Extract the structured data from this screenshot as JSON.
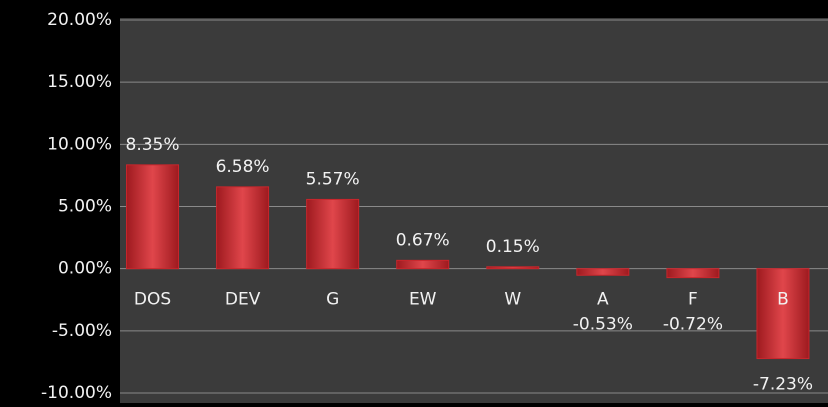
{
  "chart_data": {
    "type": "bar",
    "categories": [
      "DOS",
      "DEV",
      "G",
      "EW",
      "W",
      "A",
      "F",
      "B"
    ],
    "values": [
      8.35,
      6.58,
      5.57,
      0.67,
      0.15,
      -0.53,
      -0.72,
      -7.23
    ],
    "value_labels": [
      "8.35%",
      "6.58%",
      "5.57%",
      "0.67%",
      "0.15%",
      "-0.53%",
      "-0.72%",
      "-7.23%"
    ],
    "color": "#c8262c",
    "ylim": [
      -10,
      20
    ],
    "yticks": [
      {
        "value": -10,
        "label": "-10.00%"
      },
      {
        "value": -5,
        "label": "-5.00%"
      },
      {
        "value": 0,
        "label": "0.00%"
      },
      {
        "value": 5,
        "label": "5.00%"
      },
      {
        "value": 10,
        "label": "10.00%"
      },
      {
        "value": 15,
        "label": "15.00%"
      },
      {
        "value": 20,
        "label": "20.00%"
      }
    ],
    "grid": true
  }
}
